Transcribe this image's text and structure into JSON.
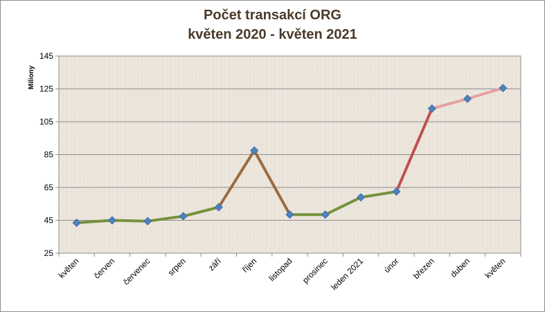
{
  "chart_data": {
    "type": "line",
    "title": "Počet transakcí ORG",
    "subtitle": "květen 2020 - květen 2021",
    "ylabel": "Miliony",
    "xlabel": "",
    "ylim": [
      25,
      145
    ],
    "yticks": [
      25,
      45,
      65,
      85,
      105,
      125,
      145
    ],
    "grid": true,
    "categories": [
      "květen",
      "červen",
      "červenec",
      "srpen",
      "září",
      "říjen",
      "listopad",
      "prosinec",
      "leden 2021",
      "únor",
      "březen",
      "duben",
      "květen"
    ],
    "series": [
      {
        "values": [
          43.5,
          45,
          44.5,
          47.5,
          53,
          87.5,
          48.5,
          48.5,
          59,
          62.5,
          113,
          119,
          125.5
        ]
      }
    ]
  },
  "colors": {
    "plot_background": "#ebe5dc",
    "gridline": "#8c8c8c",
    "title": "#4a3a2a",
    "marker": "#4f81bd",
    "line_low": "#77923c",
    "line_mid": "#9b6a3e",
    "line_peak": "#c0504d",
    "line_high": "#e6a0a0"
  }
}
